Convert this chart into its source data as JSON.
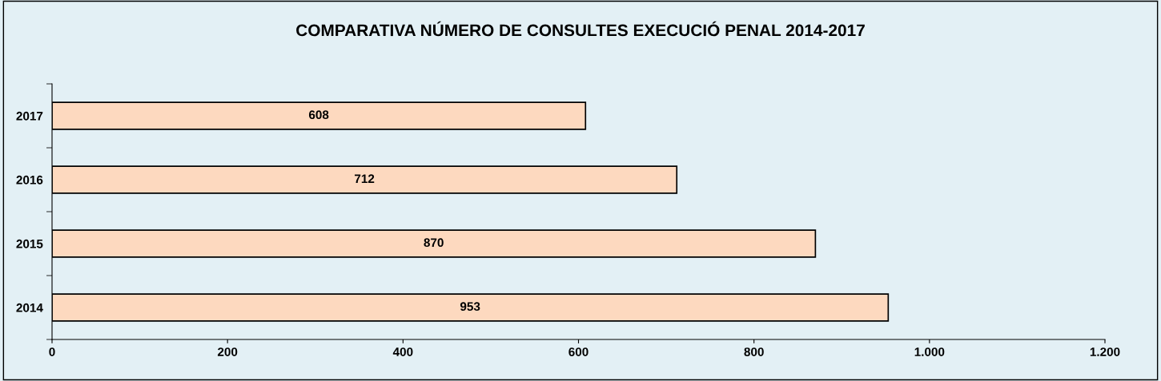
{
  "chart_data": {
    "type": "bar",
    "orientation": "horizontal",
    "title": "COMPARATIVA NÚMERO DE CONSULTES EXECUCIÓ PENAL 2014-2017",
    "categories": [
      "2017",
      "2016",
      "2015",
      "2014"
    ],
    "values": [
      608,
      712,
      870,
      953
    ],
    "color": "#fdd9bf",
    "xlim": [
      0,
      1200
    ],
    "xticks": [
      0,
      200,
      400,
      600,
      800,
      {
        "value": 1000,
        "label": "1.000"
      },
      {
        "value": 1200,
        "label": "1.200"
      }
    ],
    "data_labels": true,
    "grid": false,
    "legend": false
  }
}
